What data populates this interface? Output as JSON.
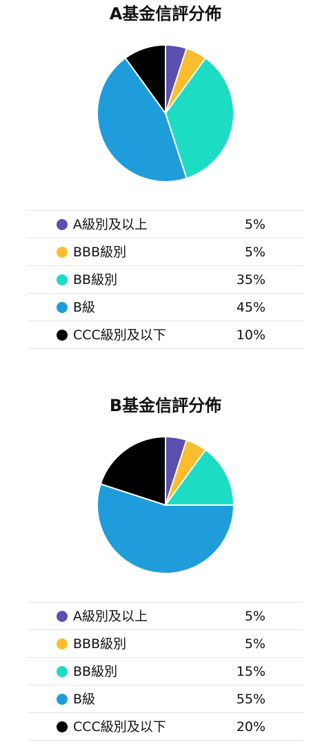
{
  "chart_data": [
    {
      "type": "pie",
      "title": "A基金信評分佈",
      "categories": [
        "A級別及以上",
        "BBB級別",
        "BB級別",
        "B級",
        "CCC級別及以下"
      ],
      "values": [
        5,
        5,
        35,
        45,
        10
      ],
      "value_labels": [
        "5%",
        "5%",
        "35%",
        "45%",
        "10%"
      ],
      "colors": [
        "#5b4fb0",
        "#fbbd2e",
        "#1ddcc4",
        "#1f9ddb",
        "#000000"
      ],
      "legend": "below"
    },
    {
      "type": "pie",
      "title": "B基金信評分佈",
      "categories": [
        "A級別及以上",
        "BBB級別",
        "BB級別",
        "B級",
        "CCC級別及以下"
      ],
      "values": [
        5,
        5,
        15,
        55,
        20
      ],
      "value_labels": [
        "5%",
        "5%",
        "15%",
        "55%",
        "20%"
      ],
      "colors": [
        "#5b4fb0",
        "#fbbd2e",
        "#1ddcc4",
        "#1f9ddb",
        "#000000"
      ],
      "legend": "below"
    }
  ]
}
